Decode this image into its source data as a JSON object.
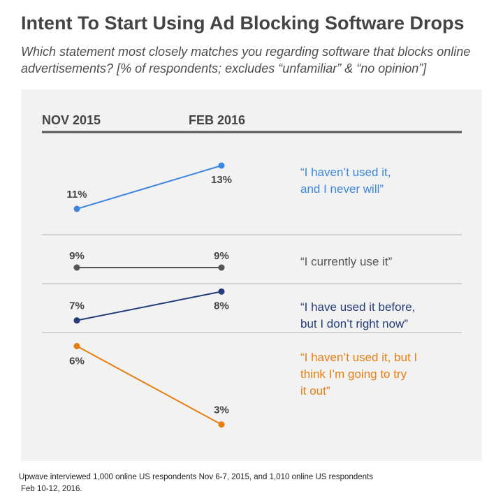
{
  "title": "Intent To Start Using Ad Blocking Software Drops",
  "subtitle": "Which statement most closely matches you regarding software that blocks online advertisements? [% of respondents; excludes “unfamiliar” & “no opinion”]",
  "footer": {
    "line1": "Upwave interviewed 1,000 online US respondents Nov 6-7, 2015, and 1,010 online US respondents",
    "line2": "Feb 10-12, 2016."
  },
  "chart_data": {
    "type": "line",
    "categories": [
      "NOV 2015",
      "FEB 2016"
    ],
    "unit": "%",
    "series": [
      {
        "name": "“I haven’t used it, and I never will”",
        "label_lines": [
          "“I haven’t used it,",
          "and I never will”"
        ],
        "values": [
          11,
          13
        ],
        "color": "#3b87e0"
      },
      {
        "name": "“I currently use it”",
        "label_lines": [
          "“I currently use it”"
        ],
        "values": [
          9,
          9
        ],
        "color": "#555555"
      },
      {
        "name": "“I have used it before, but I don’t right now”",
        "label_lines": [
          "“I have used it before,",
          "but I don’t right now”"
        ],
        "values": [
          7,
          8
        ],
        "color": "#243c78"
      },
      {
        "name": "“I haven’t used it, but I think I’m going to try it out”",
        "label_lines": [
          "“I haven’t used it, but I",
          "think I’m going to try",
          "it out”"
        ],
        "values": [
          6,
          3
        ],
        "color": "#e67e10"
      }
    ]
  }
}
